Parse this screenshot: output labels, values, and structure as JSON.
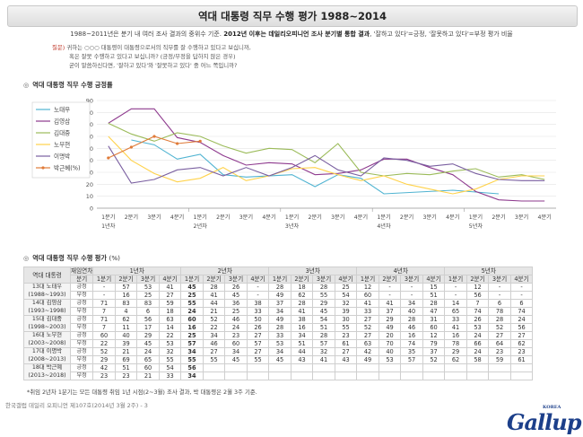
{
  "title": "역대 대통령 직무 수행 평가 1988~2014",
  "source_pre": "1988~2011년은 분기 내 여러 조사 결과의 중위수 기준. ",
  "source_bold": "2012년 이후는 데일리오피니언 조사 분기별 통합 결과",
  "source_post": ", '잘하고 있다'=긍정, '잘못하고 있다'=부정 평가 비율",
  "question": {
    "label": "질문)",
    "line1": "귀하는 ○○○ 대통령이 대통령으로서의 직무를 잘 수행하고 있다고 보십니까,",
    "line2": "혹은 잘못 수행하고 있다고 보십니까? (긍정/부정을 답하지 않은 경우)",
    "line3": "굳이 말씀하신다면, '잘하고 있다'와 '잘못하고 있다' 중 어느 쪽입니까?"
  },
  "chart_section_title": "역대 대통령 직무 수행 긍정률",
  "table_section_title": "역대 대통령 직무 수행 평가",
  "table_section_unit": "(%)",
  "colors": {
    "노태우": "#4fb3d1",
    "김영삼": "#8e3a8e",
    "김대중": "#9bbb59",
    "노무현": "#ffd24a",
    "이명박": "#7a5fa0",
    "박근혜": "#e07b39"
  },
  "chart_data": {
    "type": "line",
    "yticks": [
      0,
      10,
      20,
      30,
      40,
      50,
      60,
      70,
      80,
      90
    ],
    "ylim": [
      0,
      90
    ],
    "x_labels": [
      [
        "1분기",
        "1년차"
      ],
      [
        "2분기",
        ""
      ],
      [
        "3분기",
        ""
      ],
      [
        "4분기",
        ""
      ],
      [
        "1분기",
        "2년차"
      ],
      [
        "2분기",
        ""
      ],
      [
        "3분기",
        ""
      ],
      [
        "4분기",
        ""
      ],
      [
        "1분기",
        "3년차"
      ],
      [
        "2분기",
        ""
      ],
      [
        "3분기",
        ""
      ],
      [
        "4분기",
        ""
      ],
      [
        "1분기",
        "4년차"
      ],
      [
        "2분기",
        ""
      ],
      [
        "3분기",
        ""
      ],
      [
        "4분기",
        ""
      ],
      [
        "1분기",
        "5년차"
      ],
      [
        "2분기",
        ""
      ],
      [
        "3분기",
        ""
      ],
      [
        "4분기",
        ""
      ]
    ],
    "series": [
      {
        "name": "노태우",
        "marker": false,
        "values": [
          null,
          57,
          53,
          41,
          45,
          28,
          26,
          null,
          28,
          18,
          28,
          25,
          12,
          null,
          null,
          15,
          null,
          12,
          null,
          null
        ]
      },
      {
        "name": "김영삼",
        "marker": false,
        "values": [
          71,
          83,
          83,
          59,
          55,
          44,
          36,
          38,
          37,
          28,
          29,
          32,
          41,
          41,
          34,
          28,
          14,
          7,
          6,
          6
        ]
      },
      {
        "name": "김대중",
        "marker": false,
        "values": [
          71,
          62,
          56,
          63,
          60,
          52,
          46,
          50,
          49,
          38,
          54,
          30,
          27,
          29,
          28,
          31,
          33,
          26,
          28,
          24
        ]
      },
      {
        "name": "노무현",
        "marker": false,
        "values": [
          60,
          40,
          29,
          22,
          25,
          34,
          23,
          27,
          33,
          34,
          28,
          23,
          27,
          20,
          16,
          12,
          16,
          24,
          27,
          27
        ]
      },
      {
        "name": "이명박",
        "marker": false,
        "values": [
          52,
          21,
          24,
          32,
          34,
          27,
          34,
          27,
          34,
          44,
          32,
          27,
          42,
          40,
          35,
          37,
          29,
          24,
          23,
          23
        ]
      },
      {
        "name": "박근혜",
        "marker": true,
        "values": [
          42,
          51,
          60,
          54,
          56,
          null,
          null,
          null,
          null,
          null,
          null,
          null,
          null,
          null,
          null,
          null,
          null,
          null,
          null,
          null
        ]
      }
    ]
  },
  "table": {
    "col_head_first": "역대 대통령",
    "col_head_sub1": "재임연차",
    "col_head_sub2": "분기",
    "years": [
      "1년차",
      "2년차",
      "3년차",
      "4년차",
      "5년차"
    ],
    "quarters": [
      "1분기",
      "2분기",
      "3분기",
      "4분기"
    ],
    "pos_label": "긍정",
    "neg_label": "부정",
    "presidents": [
      {
        "name": "13대 노태우",
        "term": "(1988~1993)",
        "pos": [
          "-",
          "57",
          "53",
          "41",
          "45",
          "28",
          "26",
          "-",
          "28",
          "18",
          "28",
          "25",
          "12",
          "-",
          "-",
          "15",
          "-",
          "12",
          "-",
          "-"
        ],
        "neg": [
          "-",
          "16",
          "25",
          "27",
          "25",
          "41",
          "45",
          "-",
          "49",
          "62",
          "55",
          "54",
          "60",
          "-",
          "-",
          "51",
          "-",
          "56",
          "-",
          "-"
        ]
      },
      {
        "name": "14대 김영삼",
        "term": "(1993~1998)",
        "pos": [
          "71",
          "83",
          "83",
          "59",
          "55",
          "44",
          "36",
          "38",
          "37",
          "28",
          "29",
          "32",
          "41",
          "41",
          "34",
          "28",
          "14",
          "7",
          "6",
          "6"
        ],
        "neg": [
          "7",
          "4",
          "6",
          "18",
          "24",
          "21",
          "25",
          "33",
          "34",
          "41",
          "45",
          "39",
          "33",
          "37",
          "40",
          "47",
          "65",
          "74",
          "78",
          "74"
        ]
      },
      {
        "name": "15대 김대중",
        "term": "(1998~2003)",
        "pos": [
          "71",
          "62",
          "56",
          "63",
          "60",
          "52",
          "46",
          "50",
          "49",
          "38",
          "54",
          "30",
          "27",
          "29",
          "28",
          "31",
          "33",
          "26",
          "28",
          "24"
        ],
        "neg": [
          "7",
          "11",
          "17",
          "14",
          "16",
          "22",
          "24",
          "26",
          "28",
          "16",
          "51",
          "55",
          "52",
          "49",
          "46",
          "60",
          "41",
          "53",
          "52",
          "56"
        ]
      },
      {
        "name": "16대 노무현",
        "term": "(2003~2008)",
        "pos": [
          "60",
          "40",
          "29",
          "22",
          "25",
          "34",
          "23",
          "27",
          "33",
          "34",
          "28",
          "23",
          "27",
          "20",
          "16",
          "12",
          "16",
          "24",
          "27",
          "27"
        ],
        "neg": [
          "22",
          "39",
          "45",
          "53",
          "57",
          "46",
          "60",
          "57",
          "53",
          "51",
          "57",
          "61",
          "63",
          "70",
          "74",
          "79",
          "78",
          "66",
          "64",
          "62"
        ]
      },
      {
        "name": "17대 이명박",
        "term": "(2008~2013)",
        "pos": [
          "52",
          "21",
          "24",
          "32",
          "34",
          "27",
          "34",
          "27",
          "34",
          "44",
          "32",
          "27",
          "42",
          "40",
          "35",
          "37",
          "29",
          "24",
          "23",
          "23"
        ],
        "neg": [
          "29",
          "69",
          "65",
          "55",
          "55",
          "55",
          "45",
          "55",
          "45",
          "43",
          "41",
          "43",
          "49",
          "53",
          "57",
          "52",
          "62",
          "58",
          "59",
          "61"
        ]
      },
      {
        "name": "18대 박근혜",
        "term": "(2013~2018)",
        "pos": [
          "42",
          "51",
          "60",
          "54",
          "56",
          "",
          "",
          "",
          "",
          "",
          "",
          "",
          "",
          "",
          "",
          "",
          "",
          "",
          "",
          ""
        ],
        "neg": [
          "23",
          "23",
          "21",
          "33",
          "34",
          "",
          "",
          "",
          "",
          "",
          "",
          "",
          "",
          "",
          "",
          "",
          "",
          "",
          "",
          ""
        ]
      }
    ]
  },
  "footnote": "*취임 2년차 1분기는 모든 대통령 취임 1년 시점(2~3월) 조사 결과, 박 대통령은 2월 3주 기준.",
  "bottom_text": "한국갤럽 데일리 오피니언 제107호(2014년 3월 2주) - 3",
  "logo": "Gallup",
  "logo_small": "KOREA"
}
